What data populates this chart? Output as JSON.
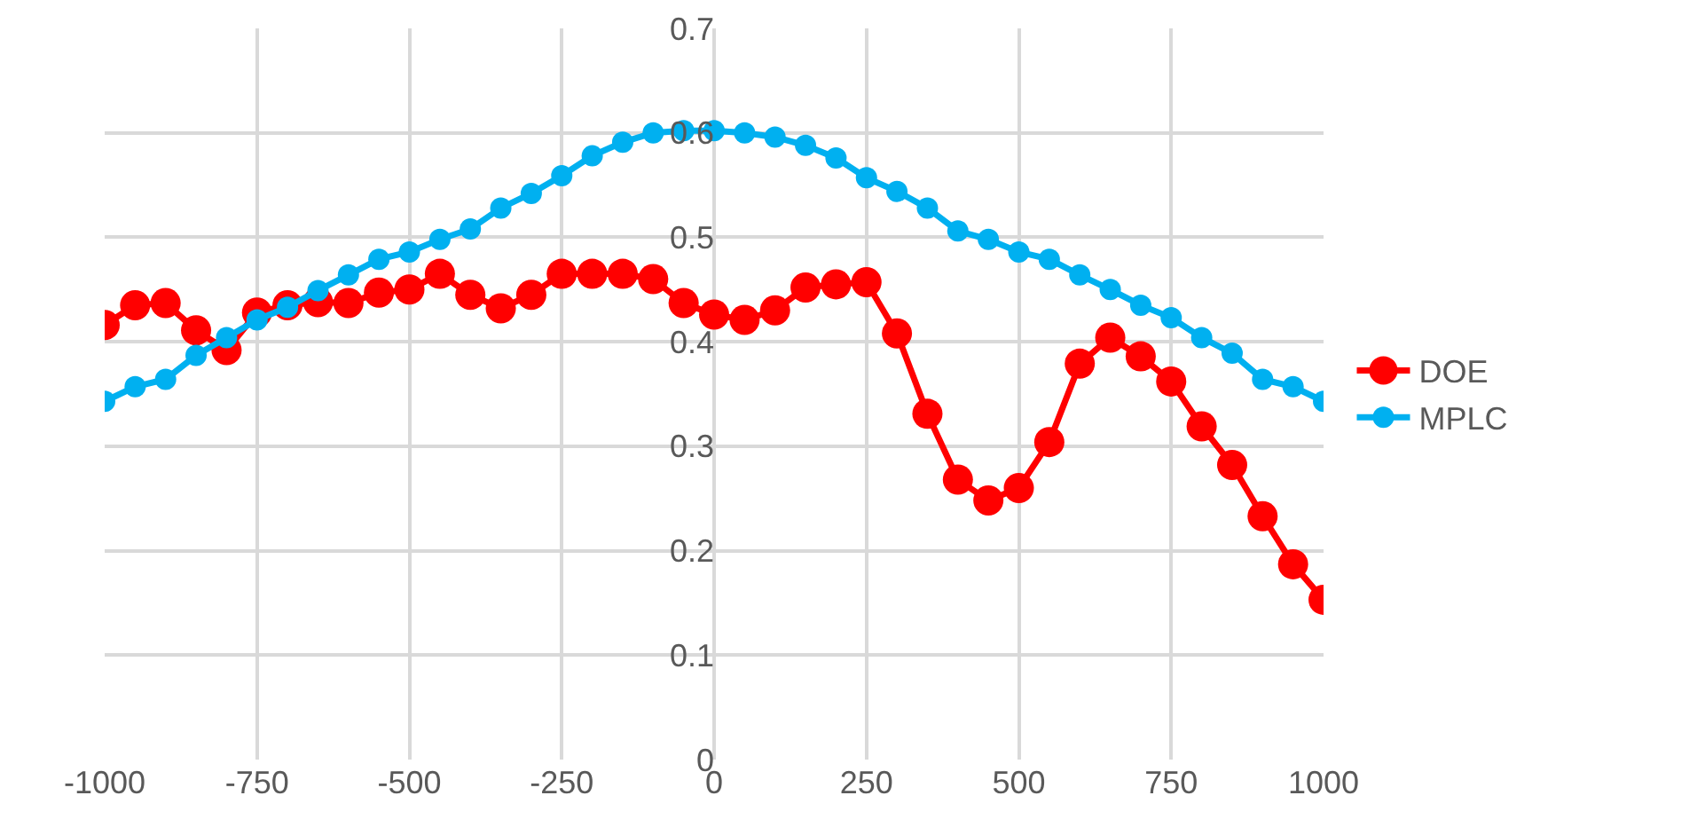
{
  "chart_data": {
    "type": "line",
    "x": [
      -1000,
      -950,
      -900,
      -850,
      -800,
      -750,
      -700,
      -650,
      -600,
      -550,
      -500,
      -450,
      -400,
      -350,
      -300,
      -250,
      -200,
      -150,
      -100,
      -50,
      0,
      50,
      100,
      150,
      200,
      250,
      300,
      350,
      400,
      450,
      500,
      550,
      600,
      650,
      700,
      750,
      800,
      850,
      900,
      950,
      1000
    ],
    "series": [
      {
        "name": "DOE",
        "color": "#ff0000",
        "values": [
          0.416,
          0.435,
          0.437,
          0.411,
          0.392,
          0.428,
          0.435,
          0.438,
          0.437,
          0.447,
          0.45,
          0.465,
          0.445,
          0.432,
          0.445,
          0.465,
          0.465,
          0.465,
          0.46,
          0.437,
          0.426,
          0.421,
          0.43,
          0.452,
          0.455,
          0.457,
          0.408,
          0.331,
          0.268,
          0.248,
          0.26,
          0.304,
          0.379,
          0.404,
          0.386,
          0.362,
          0.319,
          0.282,
          0.233,
          0.187,
          0.153
        ]
      },
      {
        "name": "MPLC",
        "color": "#00b0f0",
        "values": [
          0.343,
          0.357,
          0.364,
          0.387,
          0.404,
          0.421,
          0.433,
          0.449,
          0.464,
          0.479,
          0.486,
          0.498,
          0.508,
          0.528,
          0.542,
          0.559,
          0.578,
          0.591,
          0.6,
          0.602,
          0.602,
          0.6,
          0.596,
          0.588,
          0.576,
          0.557,
          0.544,
          0.528,
          0.506,
          0.498,
          0.486,
          0.479,
          0.464,
          0.45,
          0.435,
          0.423,
          0.404,
          0.389,
          0.364,
          0.357,
          0.343
        ]
      }
    ],
    "xlim": [
      -1000,
      1000
    ],
    "xticks": [
      -1000,
      -750,
      -500,
      -250,
      0,
      250,
      500,
      750,
      1000
    ],
    "ylim": [
      0,
      0.7
    ],
    "yticks": [
      0,
      0.1,
      0.2,
      0.3,
      0.4,
      0.5,
      0.6,
      0.7
    ],
    "grid": true,
    "legend": "right",
    "marker": "circle",
    "line_style": "solid"
  }
}
